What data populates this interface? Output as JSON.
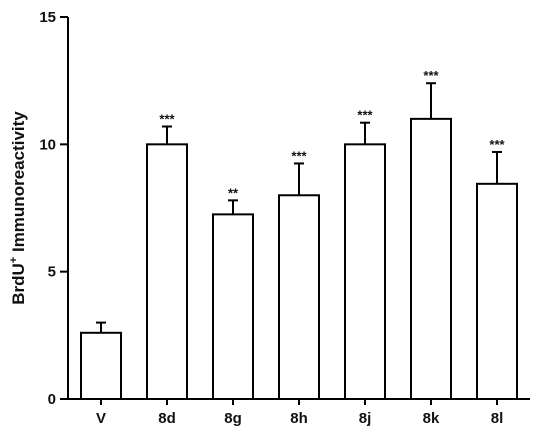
{
  "chart_data": {
    "type": "bar",
    "title": "",
    "xlabel": "",
    "ylabel": "BrdU+ Immunoreactivity",
    "ylabel_main": "BrdU",
    "ylabel_sup": "+",
    "ylabel_rest": " Immunoreactivity",
    "categories": [
      "V",
      "8d",
      "8g",
      "8h",
      "8j",
      "8k",
      "8l"
    ],
    "values": [
      2.6,
      10.0,
      7.25,
      8.0,
      10.0,
      11.0,
      8.45
    ],
    "errors": [
      0.4,
      0.7,
      0.55,
      1.25,
      0.85,
      1.4,
      1.25
    ],
    "significance": [
      "",
      "***",
      "**",
      "***",
      "***",
      "***",
      "***"
    ],
    "ylim": [
      0,
      15
    ],
    "yticks": [
      0,
      5,
      10,
      15
    ],
    "ytick_labels": [
      "0",
      "5",
      "10",
      "15"
    ],
    "grid": false,
    "bar_fill": "#ffffff",
    "bar_stroke": "#000000"
  }
}
